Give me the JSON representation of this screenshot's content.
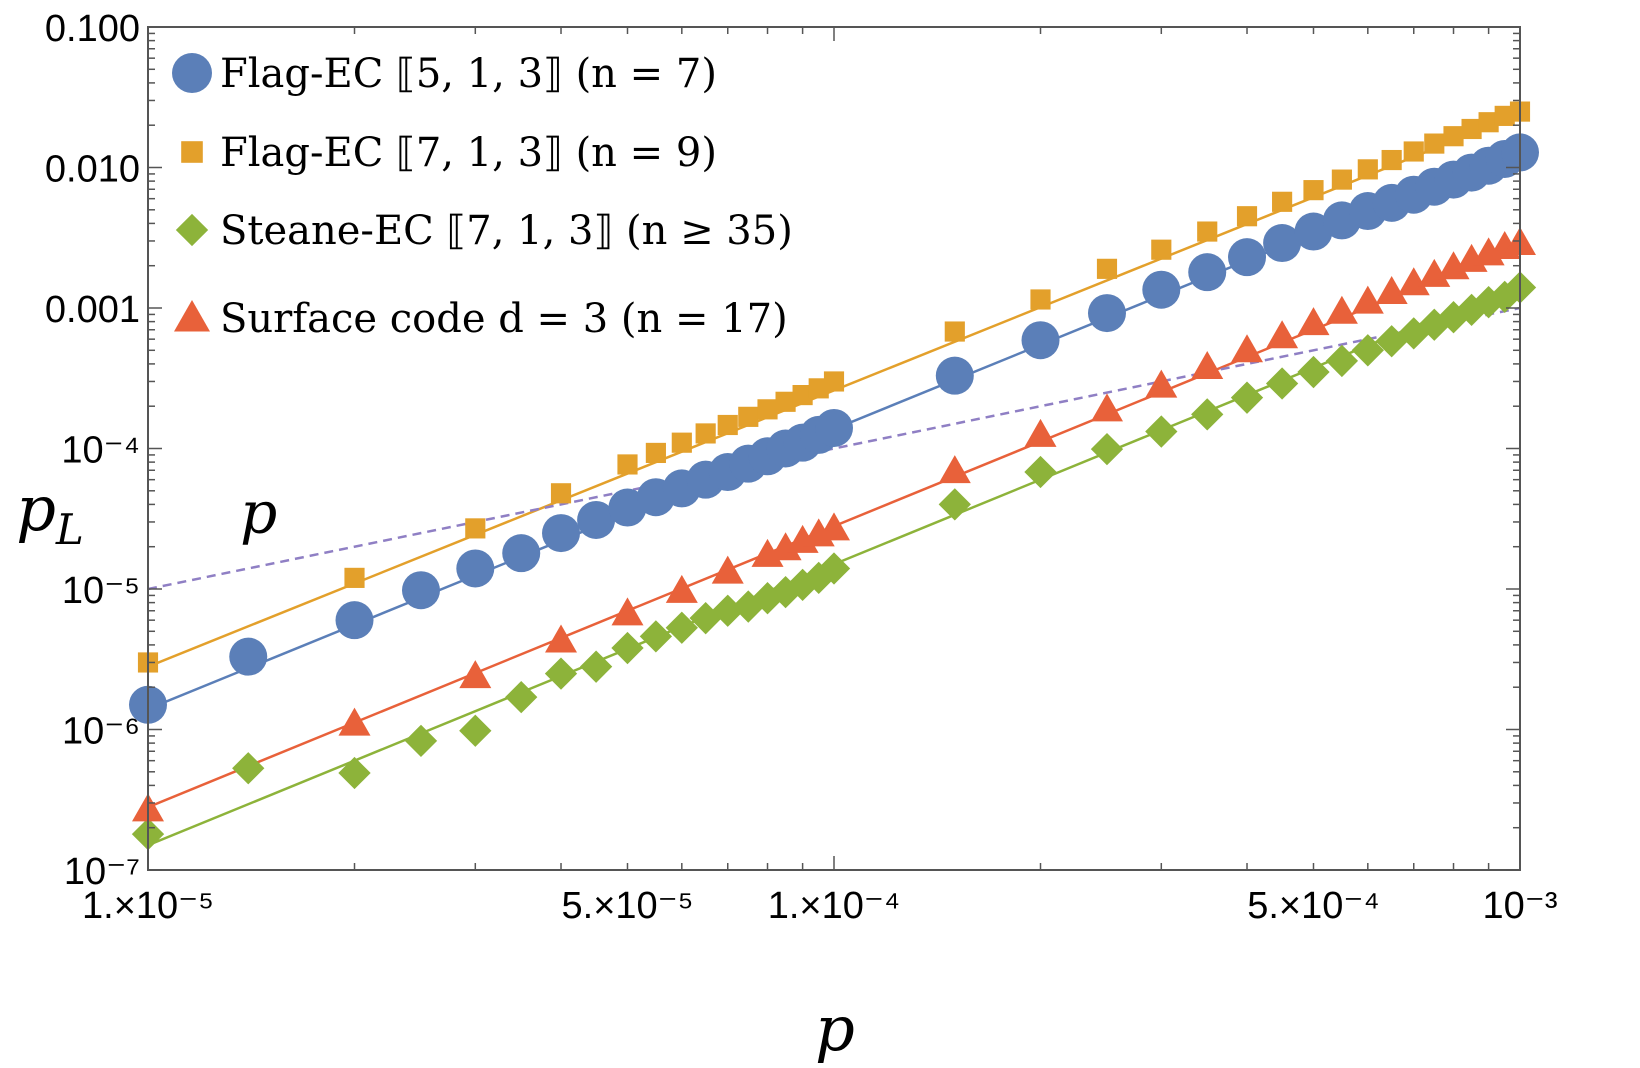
{
  "chart_data": {
    "type": "scatter",
    "xscale": "log",
    "yscale": "log",
    "xlim": [
      1e-05,
      0.001
    ],
    "ylim": [
      1e-07,
      0.1
    ],
    "xlabel": "p",
    "ylabel": "p_L",
    "x_ticks": [
      {
        "value": 1e-05,
        "label": "1.×10⁻⁵"
      },
      {
        "value": 5e-05,
        "label": "5.×10⁻⁵"
      },
      {
        "value": 0.0001,
        "label": "1.×10⁻⁴"
      },
      {
        "value": 0.0005,
        "label": "5.×10⁻⁴"
      },
      {
        "value": 0.001,
        "label": "10⁻³"
      }
    ],
    "y_ticks": [
      {
        "value": 1e-07,
        "label": "10⁻⁷"
      },
      {
        "value": 1e-06,
        "label": "10⁻⁶"
      },
      {
        "value": 1e-05,
        "label": "10⁻⁵"
      },
      {
        "value": 0.0001,
        "label": "10⁻⁴"
      },
      {
        "value": 0.001,
        "label": "0.001"
      },
      {
        "value": 0.01,
        "label": "0.010"
      },
      {
        "value": 0.1,
        "label": "0.100"
      }
    ],
    "annotations": [
      {
        "text": "p",
        "x": 1.45e-05,
        "y": 3.5e-05
      }
    ],
    "reference_line": {
      "label": "p",
      "x": [
        1e-05,
        0.001
      ],
      "y": [
        1e-05,
        0.001
      ],
      "color": "#8F7FC4",
      "style": "dashed"
    },
    "series": [
      {
        "name": "Flag-EC ⟦5,1,3⟧ (n = 7)",
        "marker": "circle",
        "color": "#5B7FB8",
        "fit": [
          [
            1e-05,
            1.4e-06
          ],
          [
            0.001,
            0.0135
          ]
        ],
        "points": [
          [
            1e-05,
            1.5e-06
          ],
          [
            1.4e-05,
            3.3e-06
          ],
          [
            2e-05,
            6e-06
          ],
          [
            2.5e-05,
            9.8e-06
          ],
          [
            3e-05,
            1.4e-05
          ],
          [
            3.5e-05,
            1.8e-05
          ],
          [
            4e-05,
            2.5e-05
          ],
          [
            4.5e-05,
            3.1e-05
          ],
          [
            5e-05,
            3.8e-05
          ],
          [
            5.5e-05,
            4.5e-05
          ],
          [
            6e-05,
            5.2e-05
          ],
          [
            6.5e-05,
            6e-05
          ],
          [
            7e-05,
            6.8e-05
          ],
          [
            7.5e-05,
            7.8e-05
          ],
          [
            8e-05,
            8.8e-05
          ],
          [
            8.5e-05,
            0.0001
          ],
          [
            9e-05,
            0.00011
          ],
          [
            9.5e-05,
            0.000125
          ],
          [
            0.0001,
            0.00014
          ],
          [
            0.00015,
            0.00033
          ],
          [
            0.0002,
            0.00059
          ],
          [
            0.00025,
            0.00092
          ],
          [
            0.0003,
            0.00135
          ],
          [
            0.00035,
            0.0018
          ],
          [
            0.0004,
            0.0023
          ],
          [
            0.00045,
            0.0029
          ],
          [
            0.0005,
            0.0035
          ],
          [
            0.00055,
            0.0042
          ],
          [
            0.0006,
            0.0049
          ],
          [
            0.00065,
            0.0056
          ],
          [
            0.0007,
            0.0064
          ],
          [
            0.00075,
            0.0073
          ],
          [
            0.0008,
            0.0082
          ],
          [
            0.00085,
            0.0092
          ],
          [
            0.0009,
            0.0103
          ],
          [
            0.00095,
            0.0115
          ],
          [
            0.001,
            0.0128
          ]
        ]
      },
      {
        "name": "Flag-EC ⟦7,1,3⟧ (n = 9)",
        "marker": "square",
        "color": "#E3A02B",
        "fit": [
          [
            1e-05,
            2.8e-06
          ],
          [
            0.001,
            0.024
          ]
        ],
        "points": [
          [
            1e-05,
            3e-06
          ],
          [
            2e-05,
            1.2e-05
          ],
          [
            3e-05,
            2.7e-05
          ],
          [
            4e-05,
            4.8e-05
          ],
          [
            5e-05,
            7.7e-05
          ],
          [
            5.5e-05,
            9.3e-05
          ],
          [
            6e-05,
            0.00011
          ],
          [
            6.5e-05,
            0.000128
          ],
          [
            7e-05,
            0.000147
          ],
          [
            7.5e-05,
            0.000168
          ],
          [
            8e-05,
            0.00019
          ],
          [
            8.5e-05,
            0.000215
          ],
          [
            9e-05,
            0.00024
          ],
          [
            9.5e-05,
            0.000268
          ],
          [
            0.0001,
            0.0003
          ],
          [
            0.00015,
            0.00068
          ],
          [
            0.0002,
            0.00115
          ],
          [
            0.00025,
            0.0019
          ],
          [
            0.0003,
            0.0026
          ],
          [
            0.00035,
            0.0035
          ],
          [
            0.0004,
            0.0045
          ],
          [
            0.00045,
            0.0057
          ],
          [
            0.0005,
            0.0069
          ],
          [
            0.00055,
            0.0082
          ],
          [
            0.0006,
            0.0097
          ],
          [
            0.00065,
            0.0113
          ],
          [
            0.0007,
            0.013
          ],
          [
            0.00075,
            0.0148
          ],
          [
            0.0008,
            0.0167
          ],
          [
            0.00085,
            0.0188
          ],
          [
            0.0009,
            0.021
          ],
          [
            0.00095,
            0.0233
          ],
          [
            0.001,
            0.025
          ]
        ]
      },
      {
        "name": "Steane-EC ⟦7,1,3⟧ (n ≥ 35)",
        "marker": "diamond",
        "color": "#8DB33A",
        "fit": [
          [
            1e-05,
            1.5e-07
          ],
          [
            0.001,
            0.0015
          ]
        ],
        "points": [
          [
            1e-05,
            1.8e-07
          ],
          [
            1.4e-05,
            5.3e-07
          ],
          [
            2e-05,
            4.9e-07
          ],
          [
            2.5e-05,
            8.3e-07
          ],
          [
            3e-05,
            9.8e-07
          ],
          [
            3.5e-05,
            1.7e-06
          ],
          [
            4e-05,
            2.5e-06
          ],
          [
            4.5e-05,
            2.8e-06
          ],
          [
            5e-05,
            3.8e-06
          ],
          [
            5.5e-05,
            4.6e-06
          ],
          [
            6e-05,
            5.3e-06
          ],
          [
            6.5e-05,
            6.2e-06
          ],
          [
            7e-05,
            7e-06
          ],
          [
            7.5e-05,
            7.5e-06
          ],
          [
            8e-05,
            8.6e-06
          ],
          [
            8.5e-05,
            9.5e-06
          ],
          [
            9e-05,
            1.07e-05
          ],
          [
            9.5e-05,
            1.2e-05
          ],
          [
            0.0001,
            1.4e-05
          ],
          [
            0.00015,
            4e-05
          ],
          [
            0.0002,
            6.8e-05
          ],
          [
            0.00025,
            9.9e-05
          ],
          [
            0.0003,
            0.000132
          ],
          [
            0.00035,
            0.000175
          ],
          [
            0.0004,
            0.00023
          ],
          [
            0.00045,
            0.00029
          ],
          [
            0.0005,
            0.00035
          ],
          [
            0.00055,
            0.00042
          ],
          [
            0.0006,
            0.0005
          ],
          [
            0.00065,
            0.00058
          ],
          [
            0.0007,
            0.00066
          ],
          [
            0.00075,
            0.00076
          ],
          [
            0.0008,
            0.00086
          ],
          [
            0.00085,
            0.00097
          ],
          [
            0.0009,
            0.0011
          ],
          [
            0.00095,
            0.0012
          ],
          [
            0.001,
            0.0014
          ]
        ]
      },
      {
        "name": "Surface code d = 3 (n = 17)",
        "marker": "triangle",
        "color": "#E8613A",
        "fit": [
          [
            1e-05,
            2.8e-07
          ],
          [
            0.001,
            0.0028
          ]
        ],
        "points": [
          [
            1e-05,
            2.7e-07
          ],
          [
            2e-05,
            1.1e-06
          ],
          [
            3e-05,
            2.4e-06
          ],
          [
            4e-05,
            4.3e-06
          ],
          [
            5e-05,
            6.7e-06
          ],
          [
            6e-05,
            9.7e-06
          ],
          [
            7e-05,
            1.33e-05
          ],
          [
            8e-05,
            1.75e-05
          ],
          [
            8.5e-05,
            1.95e-05
          ],
          [
            9e-05,
            2.2e-05
          ],
          [
            9.5e-05,
            2.45e-05
          ],
          [
            0.0001,
            2.7e-05
          ],
          [
            0.00015,
            6.9e-05
          ],
          [
            0.0002,
            0.000125
          ],
          [
            0.00025,
            0.00019
          ],
          [
            0.0003,
            0.00028
          ],
          [
            0.00035,
            0.00038
          ],
          [
            0.0004,
            0.0005
          ],
          [
            0.00045,
            0.00063
          ],
          [
            0.0005,
            0.00078
          ],
          [
            0.00055,
            0.00094
          ],
          [
            0.0006,
            0.00111
          ],
          [
            0.00065,
            0.0013
          ],
          [
            0.0007,
            0.0015
          ],
          [
            0.00075,
            0.00172
          ],
          [
            0.0008,
            0.00195
          ],
          [
            0.00085,
            0.0022
          ],
          [
            0.0009,
            0.00245
          ],
          [
            0.00095,
            0.00272
          ],
          [
            0.001,
            0.0029
          ]
        ]
      }
    ],
    "legend": {
      "placement": "top-left",
      "entries": [
        {
          "marker": "circle",
          "color": "#5B7FB8",
          "label": "Flag-EC ⟦5, 1, 3⟧ (n = 7)"
        },
        {
          "marker": "square",
          "color": "#E3A02B",
          "label": "Flag-EC ⟦7, 1, 3⟧ (n = 9)"
        },
        {
          "marker": "diamond",
          "color": "#8DB33A",
          "label": "Steane-EC ⟦7, 1, 3⟧ (n ≥ 35)"
        },
        {
          "marker": "triangle",
          "color": "#E8613A",
          "label": "Surface code d = 3 (n = 17)"
        }
      ]
    },
    "grid": false,
    "frame": true
  }
}
